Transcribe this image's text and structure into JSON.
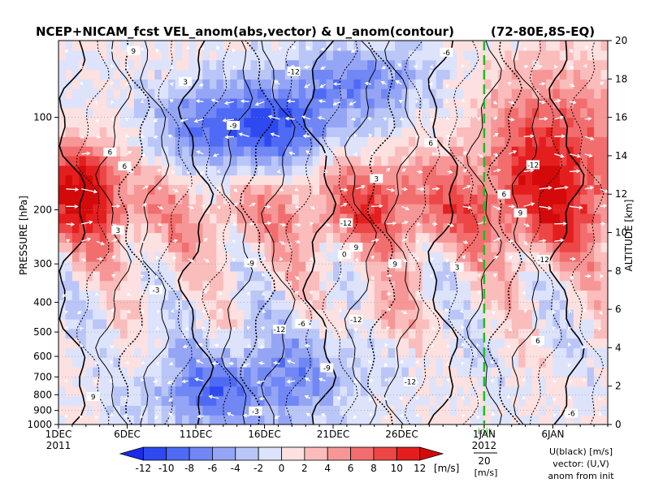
{
  "chart_data": {
    "type": "heatmap",
    "title": "NCEP+NICAM_fcst VEL_anom(abs,vector) & U_anom(contour)",
    "region": "(72-80E,8S-EQ)",
    "ylabel_left": "PRESSURE [hPa]",
    "ylabel_right": "ALTITUDE [km]",
    "x_ticks": [
      "1DEC",
      "6DEC",
      "11DEC",
      "16DEC",
      "21DEC",
      "26DEC",
      "1JAN",
      "6JAN"
    ],
    "x_years": [
      "2011",
      "2012"
    ],
    "x_init_label": "init",
    "pressure_ticks": [
      100,
      200,
      300,
      400,
      500,
      600,
      700,
      800,
      900,
      1000
    ],
    "altitude_ticks": [
      0,
      2,
      4,
      6,
      8,
      10,
      12,
      14,
      16,
      18,
      20
    ],
    "x_range_days": [
      0,
      40
    ],
    "init_day": 31,
    "colorbar": {
      "ticks": [
        "-12",
        "-10",
        "-8",
        "-6",
        "-4",
        "-2",
        "0",
        "2",
        "4",
        "6",
        "8",
        "10",
        "12"
      ],
      "unit": "[m/s]",
      "colors": [
        "#1c2be8",
        "#2f49f0",
        "#4f6af5",
        "#7087f5",
        "#95a5f5",
        "#bac6f7",
        "#dde3fb",
        "#fde0e0",
        "#fbbcbc",
        "#f79696",
        "#f26e6e",
        "#ec4646",
        "#e41e1e",
        "#d40a0a"
      ]
    },
    "vector_ref": {
      "value": "20",
      "unit": "[m/s]"
    },
    "legend_notes": [
      "U(black) [m/s]",
      "vector: (U,V)",
      "anom from init"
    ],
    "contour_labels": [
      "-6",
      "-3",
      "0",
      "3",
      "6",
      "9",
      "-9",
      "-12"
    ]
  }
}
